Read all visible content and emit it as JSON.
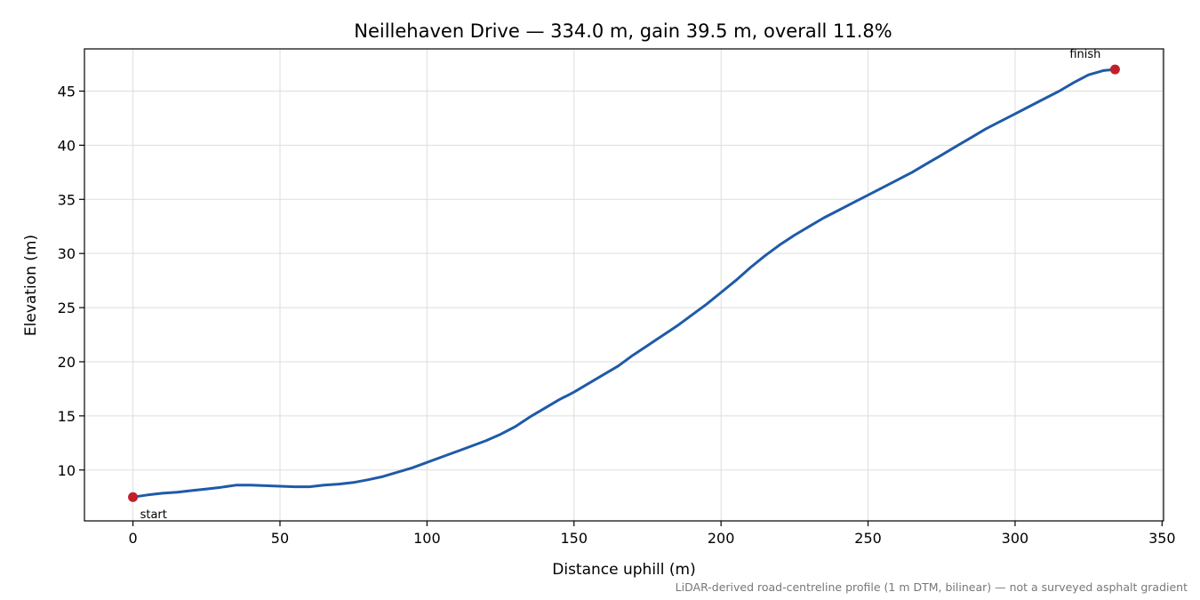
{
  "chart_data": {
    "type": "line",
    "title": "Neillehaven Drive — 334.0 m, gain 39.5 m, overall 11.8%",
    "xlabel": "Distance uphill (m)",
    "ylabel": "Elevation (m)",
    "xlim": [
      -16.5,
      350.5
    ],
    "ylim": [
      5.3,
      48.9
    ],
    "xticks": [
      0,
      50,
      100,
      150,
      200,
      250,
      300,
      350
    ],
    "yticks": [
      10,
      15,
      20,
      25,
      30,
      35,
      40,
      45
    ],
    "grid": true,
    "legend": "none",
    "series": [
      {
        "color": "#1f5aa8",
        "x": [
          0,
          5,
          10,
          15,
          20,
          25,
          30,
          35,
          40,
          45,
          50,
          55,
          60,
          65,
          70,
          75,
          80,
          85,
          90,
          95,
          100,
          105,
          110,
          115,
          120,
          125,
          130,
          135,
          140,
          145,
          150,
          155,
          160,
          165,
          170,
          175,
          180,
          185,
          190,
          195,
          200,
          205,
          210,
          215,
          220,
          225,
          230,
          235,
          240,
          245,
          250,
          255,
          260,
          265,
          270,
          275,
          280,
          285,
          290,
          295,
          300,
          305,
          310,
          315,
          320,
          325,
          330,
          334
        ],
        "y": [
          7.5,
          7.7,
          7.85,
          7.95,
          8.1,
          8.25,
          8.4,
          8.6,
          8.6,
          8.55,
          8.5,
          8.45,
          8.45,
          8.6,
          8.7,
          8.85,
          9.1,
          9.4,
          9.8,
          10.2,
          10.7,
          11.2,
          11.7,
          12.2,
          12.7,
          13.3,
          14.0,
          14.9,
          15.7,
          16.5,
          17.2,
          18.0,
          18.8,
          19.6,
          20.6,
          21.5,
          22.4,
          23.3,
          24.3,
          25.3,
          26.4,
          27.5,
          28.7,
          29.8,
          30.8,
          31.7,
          32.5,
          33.3,
          34.0,
          34.7,
          35.4,
          36.1,
          36.8,
          37.5,
          38.3,
          39.1,
          39.9,
          40.7,
          41.5,
          42.2,
          42.9,
          43.6,
          44.3,
          45.0,
          45.8,
          46.5,
          46.9,
          47.0
        ]
      }
    ],
    "markers": [
      {
        "x": 0,
        "y": 7.5,
        "label": "start",
        "color": "#c1202a"
      },
      {
        "x": 334,
        "y": 47.0,
        "label": "finish",
        "color": "#c1202a"
      }
    ],
    "footnote": "LiDAR-derived road-centreline profile (1 m DTM, bilinear) — not a surveyed asphalt gradient"
  }
}
